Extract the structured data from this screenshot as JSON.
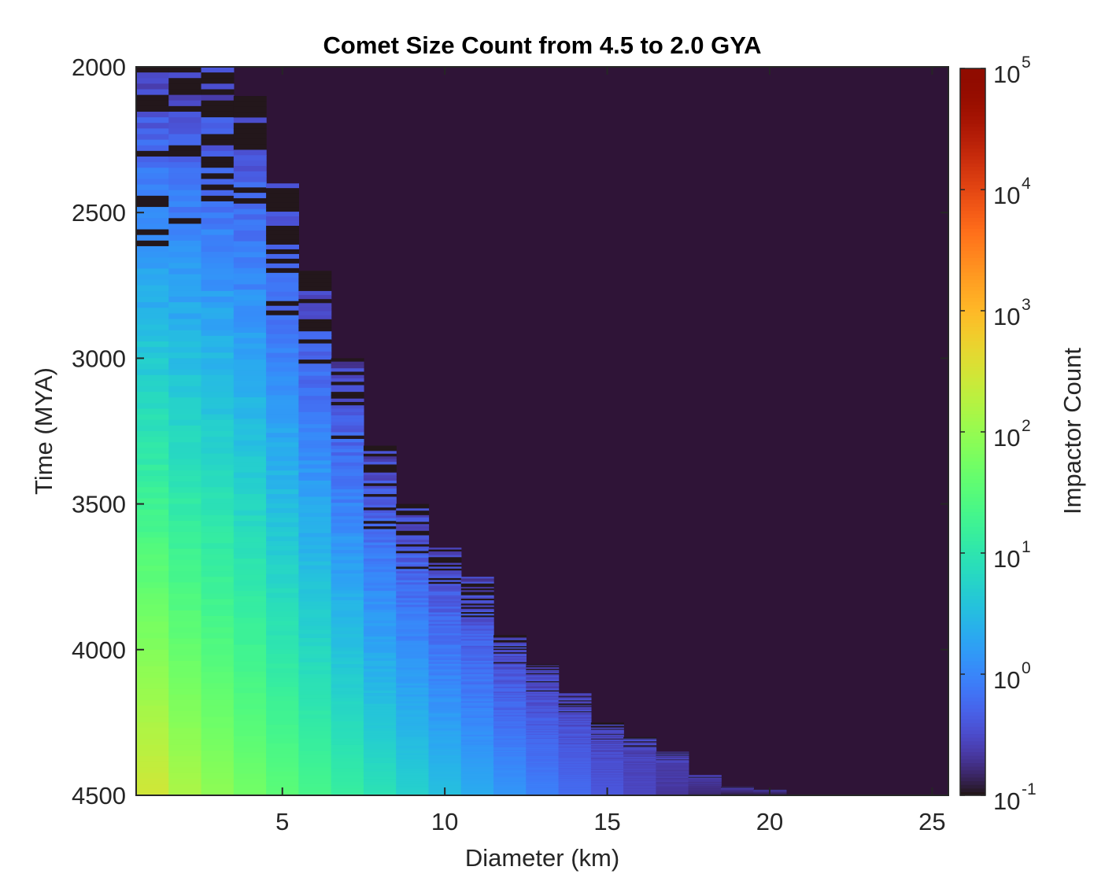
{
  "chart_data": {
    "type": "heatmap",
    "title": "Comet Size Count from 4.5 to 2.0 GYA",
    "xlabel": "Diameter (km)",
    "ylabel": "Time (MYA)",
    "colorbar_label": "Impactor Count",
    "colormap": "turbo",
    "color_scale": "log",
    "clim": [
      0.1,
      100000
    ],
    "xlim": [
      0.5,
      25.5
    ],
    "ylim": [
      2000,
      4500
    ],
    "y_reversed": true,
    "x_ticks": [
      5,
      10,
      15,
      20,
      25
    ],
    "y_ticks": [
      2000,
      2500,
      3000,
      3500,
      4000,
      4500
    ],
    "colorbar_ticks": [
      {
        "base": "10",
        "exp": "-1",
        "value": 0.1
      },
      {
        "base": "10",
        "exp": "0",
        "value": 1
      },
      {
        "base": "10",
        "exp": "1",
        "value": 10
      },
      {
        "base": "10",
        "exp": "2",
        "value": 100
      },
      {
        "base": "10",
        "exp": "3",
        "value": 1000
      },
      {
        "base": "10",
        "exp": "4",
        "value": 10000
      },
      {
        "base": "10",
        "exp": "5",
        "value": 100000
      }
    ],
    "diameter_bins_km": [
      1,
      2,
      3,
      4,
      5,
      6,
      7,
      8,
      9,
      10,
      11,
      12,
      13,
      14,
      15,
      16,
      17,
      18,
      19,
      20,
      21,
      22,
      23,
      24,
      25
    ],
    "count_at_4500_mya": [
      300,
      150,
      90,
      55,
      35,
      22,
      14,
      9,
      5.5,
      3.5,
      2.2,
      1.4,
      0.9,
      0.6,
      0.4,
      0.28,
      0.2,
      0.15,
      0.12,
      0.11,
      0.1,
      0.1,
      0.1,
      0.1,
      0.1
    ],
    "upper_time_extent_mya": [
      2000,
      2000,
      2000,
      2100,
      2400,
      2700,
      3000,
      3300,
      3500,
      3650,
      3750,
      3950,
      4050,
      4150,
      4250,
      4300,
      4350,
      4430,
      4470,
      4480,
      4470,
      4500,
      4500,
      4500,
      4500
    ],
    "background_color": "#2f1437",
    "grid": false,
    "box": true
  }
}
